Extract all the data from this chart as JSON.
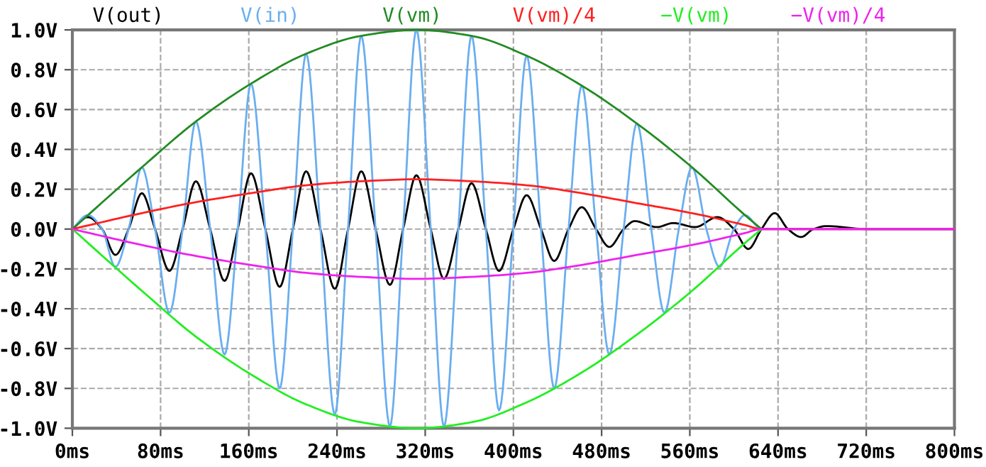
{
  "chart_data": {
    "type": "line",
    "legend": "top",
    "grid": true,
    "line_style": "solid",
    "xlim": [
      0,
      800
    ],
    "ylim": [
      -1.0,
      1.0
    ],
    "xticks": [
      {
        "value": 0,
        "label": "0ms"
      },
      {
        "value": 80,
        "label": "80ms"
      },
      {
        "value": 160,
        "label": "160ms"
      },
      {
        "value": 240,
        "label": "240ms"
      },
      {
        "value": 320,
        "label": "320ms"
      },
      {
        "value": 400,
        "label": "400ms"
      },
      {
        "value": 480,
        "label": "480ms"
      },
      {
        "value": 560,
        "label": "560ms"
      },
      {
        "value": 640,
        "label": "640ms"
      },
      {
        "value": 720,
        "label": "720ms"
      },
      {
        "value": 800,
        "label": "800ms"
      }
    ],
    "yticks": [
      {
        "value": -1.0,
        "label": "-1.0V"
      },
      {
        "value": -0.8,
        "label": "-0.8V"
      },
      {
        "value": -0.6,
        "label": "-0.6V"
      },
      {
        "value": -0.4,
        "label": "-0.4V"
      },
      {
        "value": -0.2,
        "label": "-0.2V"
      },
      {
        "value": 0.0,
        "label": "0.0V"
      },
      {
        "value": 0.2,
        "label": "0.2V"
      },
      {
        "value": 0.4,
        "label": "0.4V"
      },
      {
        "value": 0.6,
        "label": "0.6V"
      },
      {
        "value": 0.8,
        "label": "0.8V"
      },
      {
        "value": 1.0,
        "label": "1.0V"
      }
    ],
    "series": [
      {
        "name": "V(out)",
        "color": "#000000",
        "x": [
          0,
          14,
          27,
          39,
          51,
          63,
          75,
          88,
          100,
          112,
          125,
          138,
          150,
          162,
          175,
          188,
          200,
          212,
          225,
          238,
          250,
          262,
          275,
          288,
          300,
          312,
          325,
          337,
          350,
          362,
          375,
          387,
          400,
          412,
          425,
          437,
          450,
          462,
          475,
          487,
          500,
          510,
          530,
          545,
          565,
          585,
          600,
          613,
          625,
          637,
          649,
          661,
          672,
          684,
          720,
          800
        ],
        "values": [
          0,
          0.06,
          0,
          -0.13,
          0,
          0.18,
          0,
          -0.21,
          0,
          0.24,
          0,
          -0.26,
          0,
          0.28,
          0,
          -0.29,
          0,
          0.29,
          0,
          -0.3,
          0,
          0.29,
          0,
          -0.28,
          0,
          0.27,
          0,
          -0.25,
          0,
          0.23,
          0,
          -0.21,
          0,
          0.17,
          0,
          -0.16,
          0,
          0.11,
          0,
          -0.09,
          0,
          0.04,
          0.01,
          0.03,
          0.01,
          0.06,
          0,
          -0.1,
          0,
          0.08,
          0,
          -0.04,
          0,
          0.015,
          0,
          0
        ]
      },
      {
        "name": "V(in)",
        "color": "#6aaef0",
        "x": [
          0,
          14,
          27,
          39,
          51,
          63,
          75,
          88,
          100,
          112,
          125,
          138,
          150,
          162,
          175,
          188,
          200,
          212,
          225,
          238,
          250,
          262,
          275,
          288,
          300,
          312,
          325,
          337,
          350,
          362,
          375,
          387,
          400,
          412,
          425,
          437,
          450,
          462,
          475,
          487,
          500,
          512,
          525,
          537,
          550,
          562,
          575,
          587,
          600,
          610,
          625,
          800
        ],
        "values": [
          0,
          0.07,
          0,
          -0.19,
          0,
          0.31,
          0,
          -0.42,
          0,
          0.54,
          0,
          -0.63,
          0,
          0.73,
          0,
          -0.8,
          0,
          0.88,
          0,
          -0.93,
          0,
          0.97,
          0,
          -0.99,
          0,
          1.0,
          0,
          -0.99,
          0,
          0.97,
          0,
          -0.91,
          0,
          0.87,
          0,
          -0.8,
          0,
          0.72,
          0,
          -0.63,
          0,
          0.53,
          0,
          -0.42,
          0,
          0.31,
          0,
          -0.19,
          0,
          0.07,
          0,
          0
        ]
      },
      {
        "name": "V(vm)",
        "color": "#228b22",
        "x": [
          0,
          63,
          112,
          162,
          212,
          262,
          312,
          362,
          412,
          462,
          512,
          562,
          610,
          625
        ],
        "values": [
          0,
          0.31,
          0.54,
          0.73,
          0.88,
          0.97,
          1.0,
          0.97,
          0.87,
          0.72,
          0.53,
          0.31,
          0.07,
          0
        ]
      },
      {
        "name": "V(vm)/4",
        "color": "#ff2020",
        "x": [
          0,
          63,
          112,
          162,
          212,
          262,
          312,
          362,
          412,
          462,
          512,
          562,
          610,
          625,
          800
        ],
        "values": [
          0,
          0.08,
          0.135,
          0.18,
          0.22,
          0.24,
          0.25,
          0.24,
          0.22,
          0.18,
          0.13,
          0.08,
          0.02,
          0,
          0
        ]
      },
      {
        "name": "−V(vm)",
        "color": "#22ee22",
        "x": [
          0,
          63,
          112,
          162,
          212,
          262,
          312,
          362,
          412,
          462,
          512,
          562,
          610,
          625
        ],
        "values": [
          0,
          -0.31,
          -0.54,
          -0.73,
          -0.88,
          -0.97,
          -1.0,
          -0.97,
          -0.87,
          -0.72,
          -0.53,
          -0.31,
          -0.07,
          0
        ]
      },
      {
        "name": "−V(vm)/4",
        "color": "#ee22ee",
        "x": [
          0,
          63,
          112,
          162,
          212,
          262,
          312,
          362,
          412,
          462,
          512,
          562,
          610,
          625,
          800
        ],
        "values": [
          0,
          -0.08,
          -0.135,
          -0.18,
          -0.22,
          -0.24,
          -0.25,
          -0.24,
          -0.22,
          -0.18,
          -0.13,
          -0.08,
          -0.02,
          0,
          0
        ]
      }
    ]
  }
}
